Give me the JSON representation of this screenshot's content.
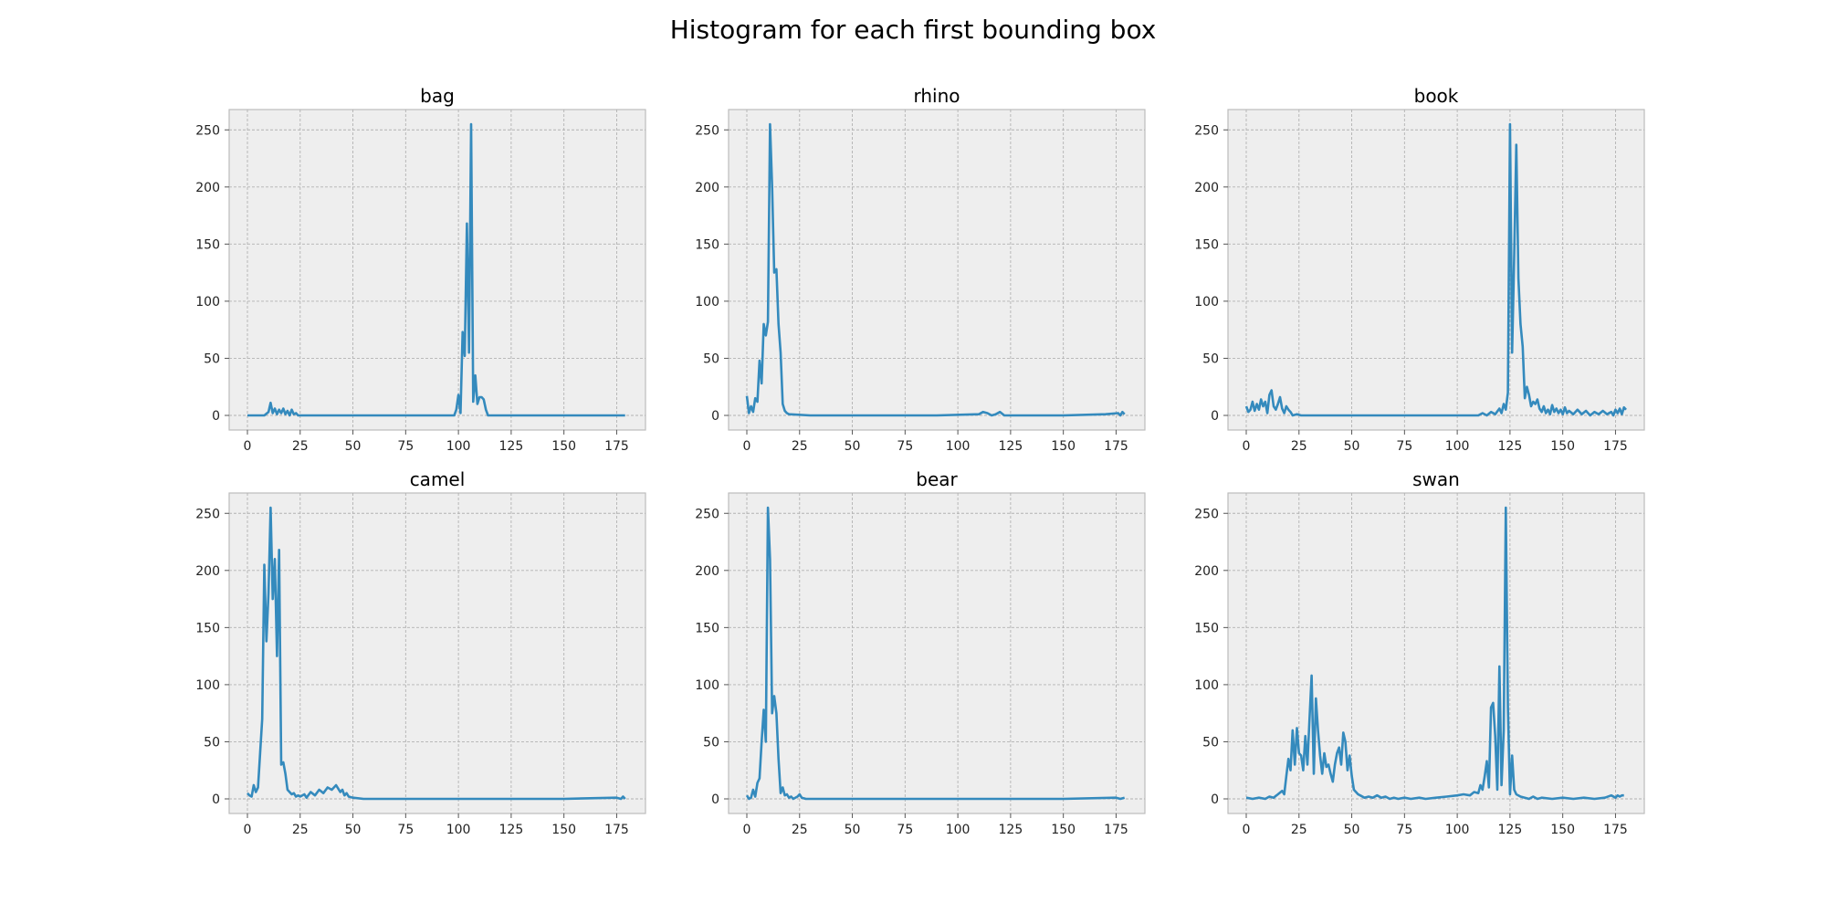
{
  "title": "Histogram for each first bounding box",
  "colors": {
    "line": "#348abd",
    "background": "#eeeeee",
    "grid": "#b2b2b2"
  },
  "chart_data": [
    {
      "type": "line",
      "title": "bag",
      "xlim": [
        0,
        180
      ],
      "ylim": [
        0,
        255
      ],
      "xticks": [
        0,
        25,
        50,
        75,
        100,
        125,
        150,
        175
      ],
      "yticks": [
        0,
        50,
        100,
        150,
        200,
        250
      ],
      "grid": true,
      "points": [
        [
          0,
          0
        ],
        [
          8,
          0
        ],
        [
          10,
          3
        ],
        [
          11,
          11
        ],
        [
          12,
          2
        ],
        [
          13,
          6
        ],
        [
          14,
          1
        ],
        [
          15,
          5
        ],
        [
          16,
          2
        ],
        [
          17,
          6
        ],
        [
          18,
          1
        ],
        [
          19,
          4
        ],
        [
          20,
          0
        ],
        [
          21,
          5
        ],
        [
          22,
          1
        ],
        [
          23,
          2
        ],
        [
          24,
          0
        ],
        [
          98,
          0
        ],
        [
          99,
          5
        ],
        [
          100,
          18
        ],
        [
          101,
          2
        ],
        [
          102,
          73
        ],
        [
          103,
          52
        ],
        [
          104,
          168
        ],
        [
          105,
          55
        ],
        [
          106,
          255
        ],
        [
          107,
          12
        ],
        [
          108,
          35
        ],
        [
          109,
          10
        ],
        [
          110,
          16
        ],
        [
          111,
          16
        ],
        [
          112,
          14
        ],
        [
          113,
          5
        ],
        [
          114,
          0
        ],
        [
          179,
          0
        ]
      ]
    },
    {
      "type": "line",
      "title": "rhino",
      "xlim": [
        0,
        180
      ],
      "ylim": [
        0,
        255
      ],
      "xticks": [
        0,
        25,
        50,
        75,
        100,
        125,
        150,
        175
      ],
      "yticks": [
        0,
        50,
        100,
        150,
        200,
        250
      ],
      "grid": true,
      "points": [
        [
          0,
          17
        ],
        [
          1,
          2
        ],
        [
          2,
          8
        ],
        [
          3,
          3
        ],
        [
          4,
          15
        ],
        [
          5,
          12
        ],
        [
          6,
          48
        ],
        [
          7,
          28
        ],
        [
          8,
          80
        ],
        [
          9,
          70
        ],
        [
          10,
          82
        ],
        [
          11,
          255
        ],
        [
          12,
          200
        ],
        [
          13,
          125
        ],
        [
          14,
          128
        ],
        [
          15,
          80
        ],
        [
          16,
          55
        ],
        [
          17,
          10
        ],
        [
          18,
          4
        ],
        [
          19,
          2
        ],
        [
          20,
          1
        ],
        [
          30,
          0
        ],
        [
          60,
          0
        ],
        [
          90,
          0
        ],
        [
          110,
          1
        ],
        [
          112,
          3
        ],
        [
          114,
          2
        ],
        [
          116,
          0
        ],
        [
          118,
          1
        ],
        [
          120,
          3
        ],
        [
          122,
          0
        ],
        [
          150,
          0
        ],
        [
          170,
          1
        ],
        [
          176,
          2
        ],
        [
          177,
          0
        ],
        [
          178,
          3
        ],
        [
          179,
          1
        ]
      ]
    },
    {
      "type": "line",
      "title": "book",
      "xlim": [
        0,
        180
      ],
      "ylim": [
        0,
        255
      ],
      "xticks": [
        0,
        25,
        50,
        75,
        100,
        125,
        150,
        175
      ],
      "yticks": [
        0,
        50,
        100,
        150,
        200,
        250
      ],
      "grid": true,
      "points": [
        [
          0,
          8
        ],
        [
          1,
          3
        ],
        [
          2,
          5
        ],
        [
          3,
          12
        ],
        [
          4,
          4
        ],
        [
          5,
          10
        ],
        [
          6,
          5
        ],
        [
          7,
          14
        ],
        [
          8,
          8
        ],
        [
          9,
          12
        ],
        [
          10,
          2
        ],
        [
          11,
          18
        ],
        [
          12,
          22
        ],
        [
          13,
          8
        ],
        [
          14,
          5
        ],
        [
          15,
          10
        ],
        [
          16,
          16
        ],
        [
          17,
          6
        ],
        [
          18,
          2
        ],
        [
          19,
          8
        ],
        [
          20,
          5
        ],
        [
          21,
          3
        ],
        [
          22,
          0
        ],
        [
          24,
          1
        ],
        [
          26,
          0
        ],
        [
          110,
          0
        ],
        [
          112,
          2
        ],
        [
          114,
          0
        ],
        [
          116,
          3
        ],
        [
          118,
          1
        ],
        [
          120,
          6
        ],
        [
          121,
          2
        ],
        [
          122,
          10
        ],
        [
          123,
          5
        ],
        [
          124,
          20
        ],
        [
          125,
          255
        ],
        [
          126,
          55
        ],
        [
          127,
          140
        ],
        [
          128,
          237
        ],
        [
          129,
          120
        ],
        [
          130,
          80
        ],
        [
          131,
          60
        ],
        [
          132,
          15
        ],
        [
          133,
          25
        ],
        [
          134,
          18
        ],
        [
          135,
          8
        ],
        [
          136,
          12
        ],
        [
          137,
          10
        ],
        [
          138,
          14
        ],
        [
          139,
          6
        ],
        [
          140,
          3
        ],
        [
          141,
          8
        ],
        [
          142,
          2
        ],
        [
          143,
          5
        ],
        [
          144,
          1
        ],
        [
          145,
          9
        ],
        [
          146,
          3
        ],
        [
          147,
          6
        ],
        [
          148,
          2
        ],
        [
          149,
          5
        ],
        [
          150,
          1
        ],
        [
          151,
          7
        ],
        [
          152,
          2
        ],
        [
          153,
          4
        ],
        [
          155,
          1
        ],
        [
          157,
          5
        ],
        [
          159,
          1
        ],
        [
          161,
          4
        ],
        [
          163,
          0
        ],
        [
          165,
          3
        ],
        [
          167,
          1
        ],
        [
          169,
          4
        ],
        [
          171,
          1
        ],
        [
          173,
          3
        ],
        [
          174,
          0
        ],
        [
          175,
          5
        ],
        [
          176,
          2
        ],
        [
          177,
          6
        ],
        [
          178,
          1
        ],
        [
          179,
          7
        ],
        [
          180,
          5
        ]
      ]
    },
    {
      "type": "line",
      "title": "camel",
      "xlim": [
        0,
        180
      ],
      "ylim": [
        0,
        255
      ],
      "xticks": [
        0,
        25,
        50,
        75,
        100,
        125,
        150,
        175
      ],
      "yticks": [
        0,
        50,
        100,
        150,
        200,
        250
      ],
      "grid": true,
      "points": [
        [
          0,
          5
        ],
        [
          1,
          3
        ],
        [
          2,
          2
        ],
        [
          3,
          12
        ],
        [
          4,
          6
        ],
        [
          5,
          10
        ],
        [
          6,
          40
        ],
        [
          7,
          70
        ],
        [
          8,
          205
        ],
        [
          9,
          138
        ],
        [
          10,
          180
        ],
        [
          11,
          255
        ],
        [
          12,
          175
        ],
        [
          13,
          210
        ],
        [
          14,
          125
        ],
        [
          15,
          218
        ],
        [
          16,
          30
        ],
        [
          17,
          32
        ],
        [
          18,
          22
        ],
        [
          19,
          8
        ],
        [
          20,
          6
        ],
        [
          21,
          4
        ],
        [
          22,
          5
        ],
        [
          23,
          2
        ],
        [
          24,
          3
        ],
        [
          25,
          2
        ],
        [
          27,
          4
        ],
        [
          28,
          1
        ],
        [
          30,
          6
        ],
        [
          32,
          3
        ],
        [
          34,
          8
        ],
        [
          36,
          5
        ],
        [
          38,
          10
        ],
        [
          40,
          8
        ],
        [
          42,
          12
        ],
        [
          43,
          9
        ],
        [
          44,
          6
        ],
        [
          45,
          8
        ],
        [
          46,
          3
        ],
        [
          47,
          5
        ],
        [
          48,
          2
        ],
        [
          50,
          1
        ],
        [
          55,
          0
        ],
        [
          100,
          0
        ],
        [
          120,
          0
        ],
        [
          150,
          0
        ],
        [
          175,
          1
        ],
        [
          177,
          0
        ],
        [
          178,
          2
        ],
        [
          179,
          0
        ]
      ]
    },
    {
      "type": "line",
      "title": "bear",
      "xlim": [
        0,
        180
      ],
      "ylim": [
        0,
        255
      ],
      "xticks": [
        0,
        25,
        50,
        75,
        100,
        125,
        150,
        175
      ],
      "yticks": [
        0,
        50,
        100,
        150,
        200,
        250
      ],
      "grid": true,
      "points": [
        [
          0,
          3
        ],
        [
          1,
          0
        ],
        [
          2,
          1
        ],
        [
          3,
          8
        ],
        [
          4,
          2
        ],
        [
          5,
          14
        ],
        [
          6,
          18
        ],
        [
          7,
          50
        ],
        [
          8,
          78
        ],
        [
          9,
          50
        ],
        [
          10,
          255
        ],
        [
          11,
          210
        ],
        [
          12,
          75
        ],
        [
          13,
          90
        ],
        [
          14,
          75
        ],
        [
          15,
          35
        ],
        [
          16,
          5
        ],
        [
          17,
          10
        ],
        [
          18,
          3
        ],
        [
          19,
          4
        ],
        [
          20,
          1
        ],
        [
          21,
          2
        ],
        [
          22,
          0
        ],
        [
          24,
          2
        ],
        [
          25,
          4
        ],
        [
          26,
          1
        ],
        [
          28,
          0
        ],
        [
          60,
          0
        ],
        [
          100,
          0
        ],
        [
          150,
          0
        ],
        [
          175,
          1
        ],
        [
          177,
          0
        ],
        [
          179,
          1
        ]
      ]
    },
    {
      "type": "line",
      "title": "swan",
      "xlim": [
        0,
        180
      ],
      "ylim": [
        0,
        255
      ],
      "xticks": [
        0,
        25,
        50,
        75,
        100,
        125,
        150,
        175
      ],
      "yticks": [
        0,
        50,
        100,
        150,
        200,
        250
      ],
      "grid": true,
      "points": [
        [
          0,
          1
        ],
        [
          3,
          0
        ],
        [
          6,
          1
        ],
        [
          9,
          0
        ],
        [
          11,
          2
        ],
        [
          13,
          1
        ],
        [
          15,
          4
        ],
        [
          17,
          7
        ],
        [
          18,
          4
        ],
        [
          19,
          20
        ],
        [
          20,
          35
        ],
        [
          21,
          25
        ],
        [
          22,
          60
        ],
        [
          23,
          30
        ],
        [
          24,
          62
        ],
        [
          25,
          40
        ],
        [
          26,
          38
        ],
        [
          27,
          25
        ],
        [
          28,
          55
        ],
        [
          29,
          30
        ],
        [
          30,
          70
        ],
        [
          31,
          108
        ],
        [
          32,
          22
        ],
        [
          33,
          88
        ],
        [
          34,
          60
        ],
        [
          35,
          38
        ],
        [
          36,
          22
        ],
        [
          37,
          40
        ],
        [
          38,
          28
        ],
        [
          39,
          30
        ],
        [
          40,
          22
        ],
        [
          41,
          15
        ],
        [
          42,
          30
        ],
        [
          43,
          40
        ],
        [
          44,
          45
        ],
        [
          45,
          30
        ],
        [
          46,
          58
        ],
        [
          47,
          50
        ],
        [
          48,
          25
        ],
        [
          49,
          38
        ],
        [
          50,
          20
        ],
        [
          51,
          8
        ],
        [
          52,
          6
        ],
        [
          53,
          4
        ],
        [
          54,
          3
        ],
        [
          56,
          1
        ],
        [
          58,
          2
        ],
        [
          60,
          1
        ],
        [
          62,
          3
        ],
        [
          64,
          1
        ],
        [
          66,
          2
        ],
        [
          68,
          0
        ],
        [
          70,
          1
        ],
        [
          72,
          0
        ],
        [
          75,
          1
        ],
        [
          78,
          0
        ],
        [
          82,
          1
        ],
        [
          85,
          0
        ],
        [
          90,
          1
        ],
        [
          95,
          2
        ],
        [
          100,
          3
        ],
        [
          103,
          4
        ],
        [
          106,
          3
        ],
        [
          108,
          6
        ],
        [
          110,
          5
        ],
        [
          111,
          12
        ],
        [
          112,
          8
        ],
        [
          113,
          20
        ],
        [
          114,
          33
        ],
        [
          115,
          10
        ],
        [
          116,
          80
        ],
        [
          117,
          84
        ],
        [
          118,
          55
        ],
        [
          119,
          8
        ],
        [
          120,
          116
        ],
        [
          121,
          12
        ],
        [
          122,
          60
        ],
        [
          123,
          255
        ],
        [
          124,
          80
        ],
        [
          125,
          4
        ],
        [
          126,
          38
        ],
        [
          127,
          8
        ],
        [
          128,
          4
        ],
        [
          130,
          2
        ],
        [
          132,
          1
        ],
        [
          134,
          0
        ],
        [
          136,
          2
        ],
        [
          138,
          0
        ],
        [
          140,
          1
        ],
        [
          145,
          0
        ],
        [
          150,
          1
        ],
        [
          155,
          0
        ],
        [
          160,
          1
        ],
        [
          165,
          0
        ],
        [
          170,
          1
        ],
        [
          173,
          3
        ],
        [
          175,
          1
        ],
        [
          176,
          3
        ],
        [
          177,
          2
        ],
        [
          178,
          3
        ],
        [
          179,
          3
        ]
      ]
    }
  ]
}
